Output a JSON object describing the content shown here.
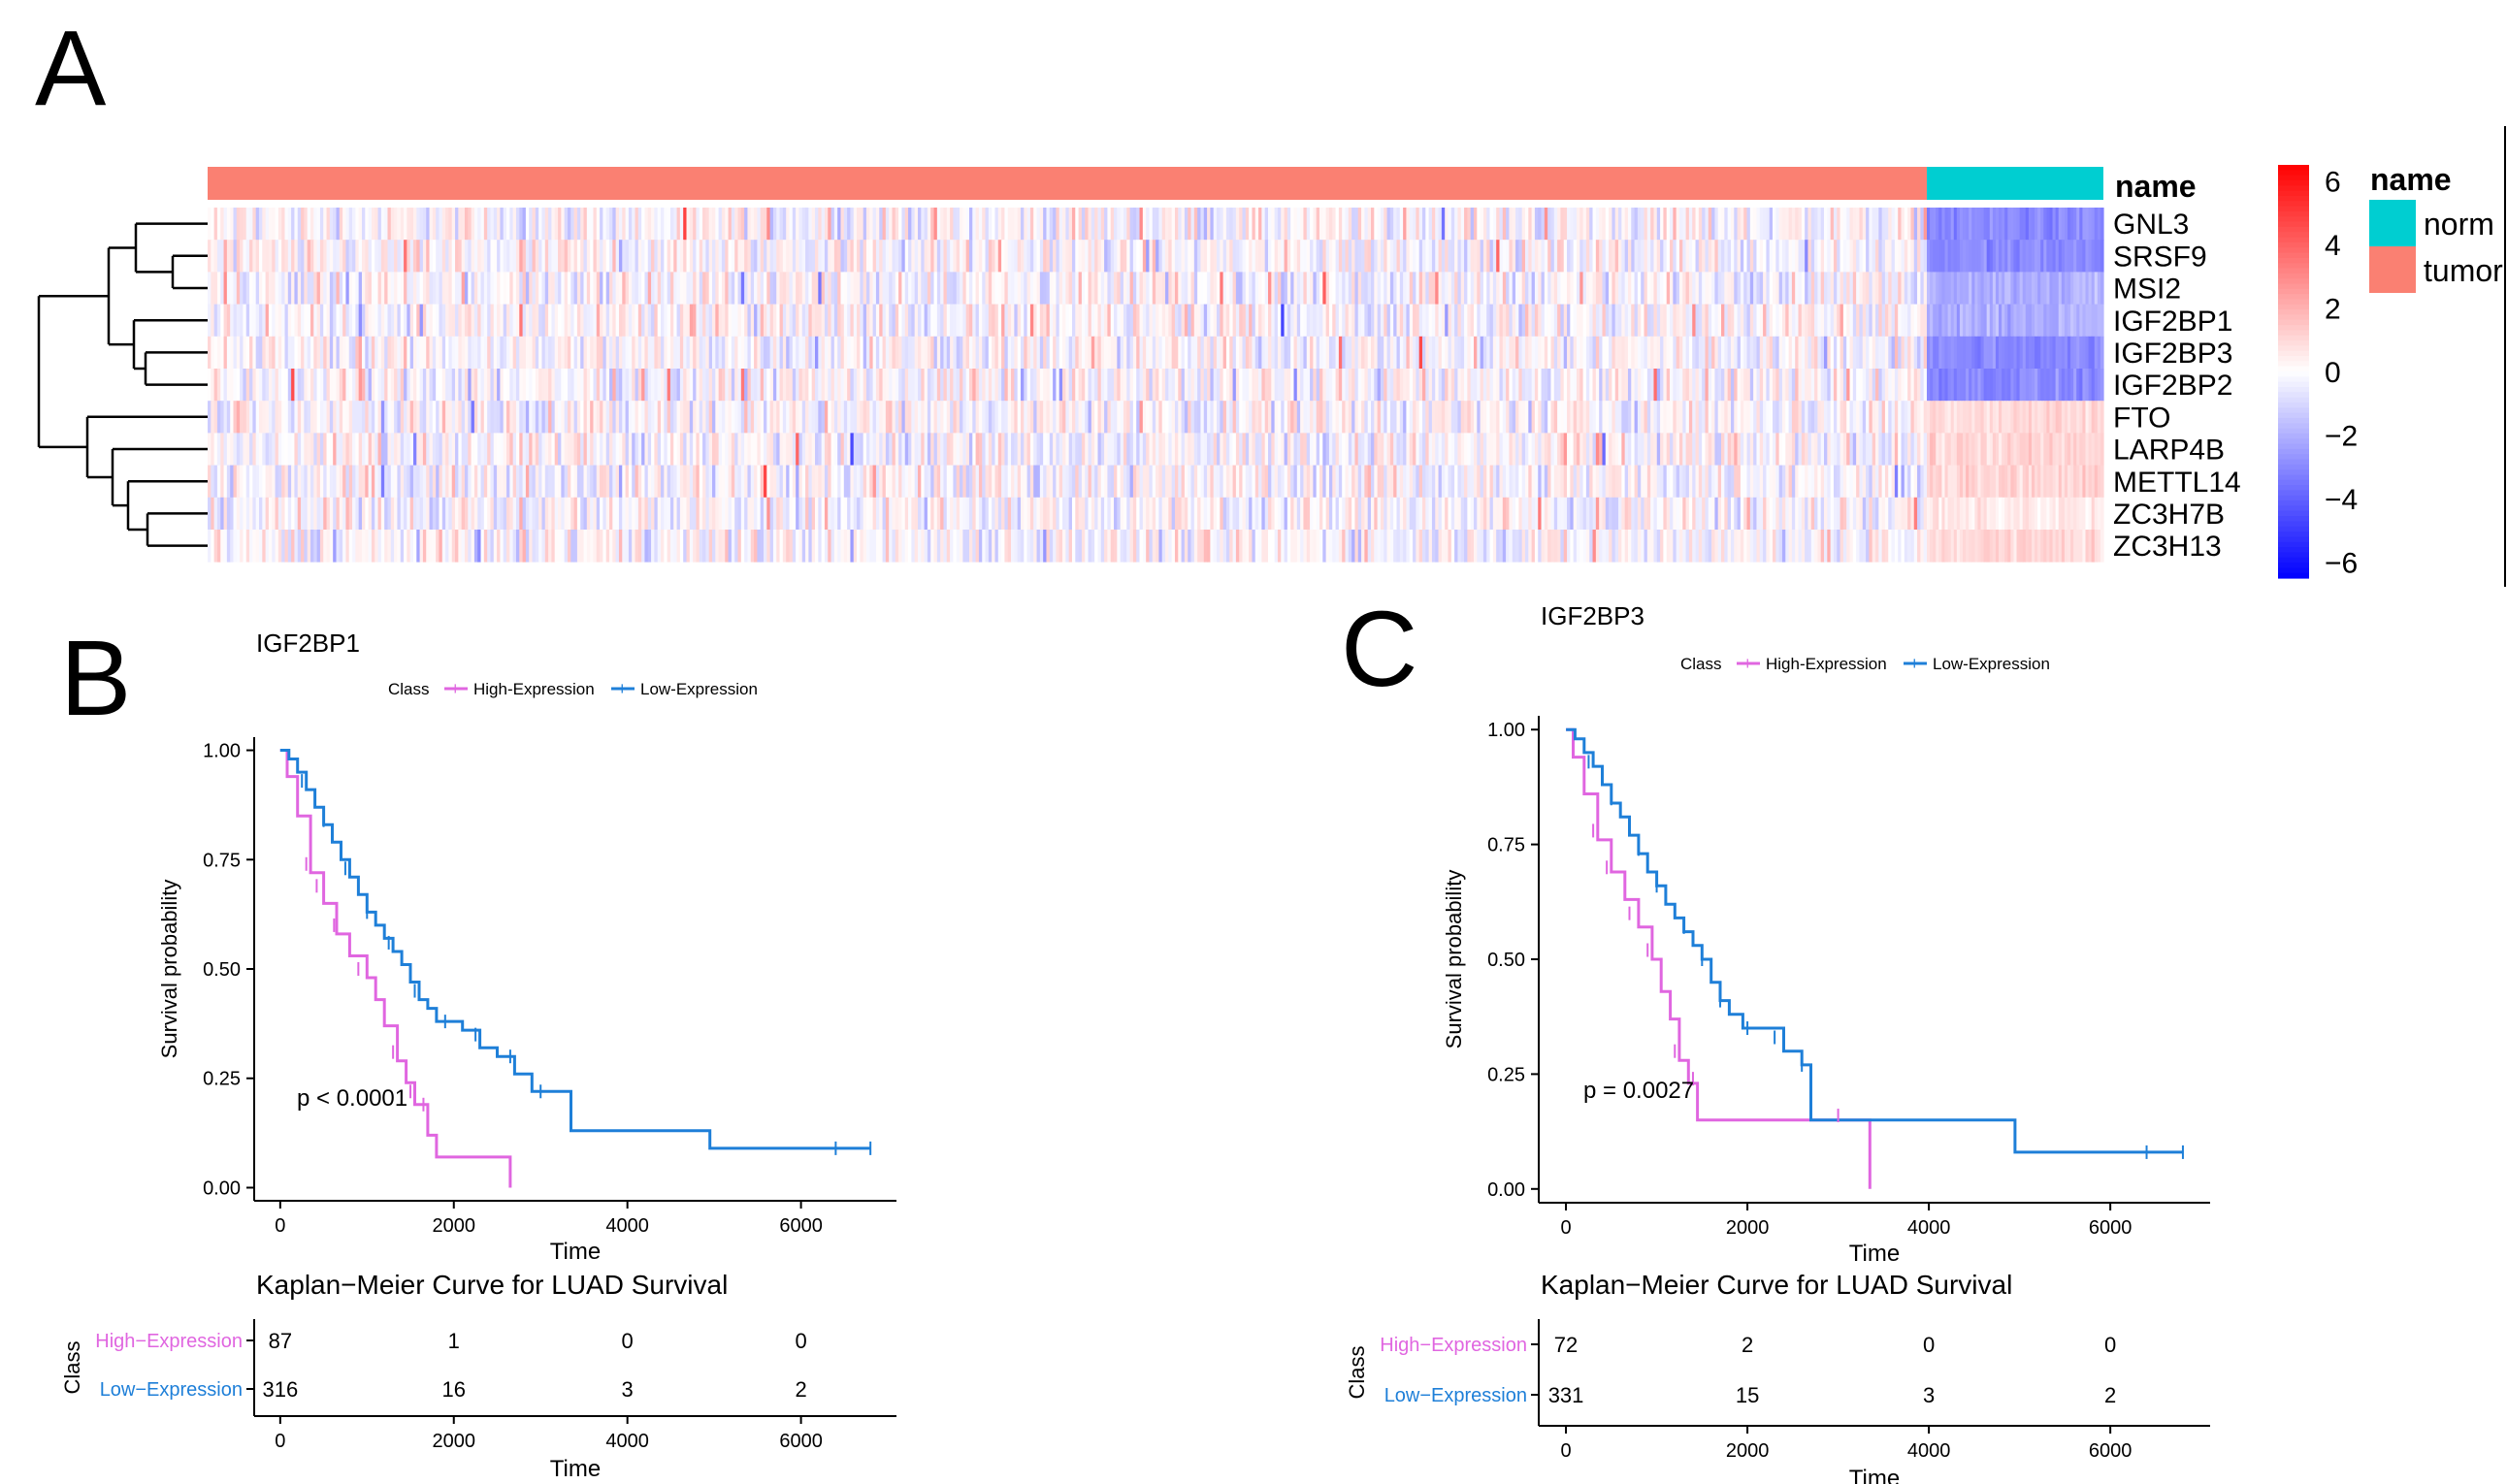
{
  "figure": {
    "panel_labels": [
      "A",
      "B",
      "C"
    ],
    "legend_tumor_label_full": "tumor"
  },
  "chart_data": [
    {
      "type": "heatmap",
      "panel": "A",
      "rows": [
        "GNL3",
        "SRSF9",
        "MSI2",
        "IGF2BP1",
        "IGF2BP3",
        "IGF2BP2",
        "FTO",
        "LARP4B",
        "METTL14",
        "ZC3H7B",
        "ZC3H13"
      ],
      "annotation": {
        "title": "name",
        "groups": [
          {
            "label": "norm",
            "color": "#00CED1",
            "count": 59
          },
          {
            "label": "tumor",
            "color": "#FA8072",
            "count": 535
          }
        ]
      },
      "normal_mean_z": [
        -3,
        -3,
        -2,
        -2,
        -3,
        -3,
        1,
        1,
        1,
        0.5,
        1
      ],
      "color_scale": {
        "ticks": [
          6,
          4,
          2,
          0,
          -2,
          -4,
          -6
        ],
        "range": [
          -6.5,
          6.5
        ],
        "low": "#0000ff",
        "mid": "#ffffff",
        "high": "#ff0000"
      },
      "dendrogram": "rows clustered: (((GNL3,(SRSF9,MSI2)),(IGF2BP1,(IGF2BP3,IGF2BP2))),(FTO,(LARP4B,(METTL14,(ZC3H7B,ZC3H13)))))"
    },
    {
      "type": "line",
      "panel": "B",
      "gene": "IGF2BP1",
      "legend_title": "Class",
      "legend": [
        "High-Expression",
        "Low-Expression"
      ],
      "colors": {
        "high": "#E066E0",
        "low": "#1E7FD8"
      },
      "xlabel": "Time",
      "ylabel": "Survival probability",
      "xlim": [
        -300,
        7100
      ],
      "ylim": [
        -0.03,
        1.03
      ],
      "x_ticks": [
        "0",
        "2000",
        "4000",
        "6000"
      ],
      "y_ticks": [
        "0.00",
        "0.25",
        "0.50",
        "0.75",
        "1.00"
      ],
      "pvalue": "p < 0.0001",
      "series": [
        {
          "name": "High-Expression",
          "x": [
            0,
            80,
            200,
            350,
            500,
            650,
            800,
            1000,
            1100,
            1200,
            1350,
            1450,
            1550,
            1700,
            1800,
            2000,
            2200,
            2650,
            2650
          ],
          "y": [
            1.0,
            0.94,
            0.85,
            0.72,
            0.65,
            0.58,
            0.53,
            0.48,
            0.43,
            0.37,
            0.29,
            0.24,
            0.19,
            0.12,
            0.07,
            0.07,
            0.07,
            0.07,
            0.0
          ]
        },
        {
          "name": "Low-Expression",
          "x": [
            0,
            100,
            200,
            300,
            400,
            500,
            600,
            700,
            800,
            900,
            1000,
            1100,
            1200,
            1300,
            1400,
            1500,
            1600,
            1700,
            1800,
            1950,
            2100,
            2300,
            2500,
            2700,
            2900,
            3100,
            3350,
            3600,
            4000,
            4500,
            4950,
            5500,
            6000,
            6800
          ],
          "y": [
            1.0,
            0.98,
            0.95,
            0.91,
            0.87,
            0.83,
            0.79,
            0.75,
            0.71,
            0.67,
            0.63,
            0.6,
            0.57,
            0.54,
            0.51,
            0.47,
            0.43,
            0.41,
            0.38,
            0.38,
            0.36,
            0.32,
            0.3,
            0.26,
            0.22,
            0.22,
            0.13,
            0.13,
            0.13,
            0.13,
            0.09,
            0.09,
            0.09,
            0.09
          ]
        }
      ],
      "censor_marks": {
        "high": [
          [
            300,
            0.74
          ],
          [
            420,
            0.69
          ],
          [
            620,
            0.6
          ],
          [
            900,
            0.5
          ],
          [
            1300,
            0.31
          ],
          [
            1500,
            0.22
          ],
          [
            1650,
            0.19
          ]
        ],
        "low": [
          [
            250,
            0.93
          ],
          [
            500,
            0.84
          ],
          [
            750,
            0.73
          ],
          [
            1000,
            0.63
          ],
          [
            1250,
            0.56
          ],
          [
            1550,
            0.45
          ],
          [
            1900,
            0.38
          ],
          [
            2250,
            0.35
          ],
          [
            2650,
            0.3
          ],
          [
            3000,
            0.22
          ],
          [
            6400,
            0.09
          ],
          [
            6800,
            0.09
          ]
        ]
      },
      "caption": "Kaplan−Meier Curve for LUAD Survival",
      "risk_table": {
        "ylabel": "Class",
        "xlabel": "Time",
        "row_labels": [
          "High-Expression",
          "Low-Expression"
        ],
        "rows": [
          [
            "87",
            "1",
            "0",
            "0"
          ],
          [
            "316",
            "16",
            "3",
            "2"
          ]
        ]
      }
    },
    {
      "type": "line",
      "panel": "C",
      "gene": "IGF2BP3",
      "legend_title": "Class",
      "legend": [
        "High-Expression",
        "Low-Expression"
      ],
      "colors": {
        "high": "#E066E0",
        "low": "#1E7FD8"
      },
      "xlabel": "Time",
      "ylabel": "Survival probability",
      "xlim": [
        -300,
        7100
      ],
      "ylim": [
        -0.03,
        1.03
      ],
      "x_ticks": [
        "0",
        "2000",
        "4000",
        "6000"
      ],
      "y_ticks": [
        "0.00",
        "0.25",
        "0.50",
        "0.75",
        "1.00"
      ],
      "pvalue": "p = 0.0027",
      "series": [
        {
          "name": "High-Expression",
          "x": [
            0,
            80,
            200,
            350,
            500,
            650,
            800,
            950,
            1050,
            1150,
            1250,
            1350,
            1450,
            2000,
            2500,
            3000,
            3350,
            3350
          ],
          "y": [
            1.0,
            0.94,
            0.86,
            0.76,
            0.69,
            0.63,
            0.57,
            0.5,
            0.43,
            0.37,
            0.28,
            0.23,
            0.15,
            0.15,
            0.15,
            0.15,
            0.15,
            0.0
          ]
        },
        {
          "name": "Low-Expression",
          "x": [
            0,
            100,
            200,
            300,
            400,
            500,
            600,
            700,
            800,
            900,
            1000,
            1100,
            1200,
            1300,
            1400,
            1500,
            1600,
            1700,
            1800,
            1950,
            2200,
            2400,
            2600,
            2700,
            3000,
            3400,
            4000,
            4500,
            4950,
            5500,
            6000,
            6800
          ],
          "y": [
            1.0,
            0.98,
            0.95,
            0.92,
            0.88,
            0.84,
            0.81,
            0.77,
            0.73,
            0.69,
            0.66,
            0.62,
            0.59,
            0.56,
            0.53,
            0.5,
            0.45,
            0.41,
            0.38,
            0.35,
            0.35,
            0.3,
            0.27,
            0.15,
            0.15,
            0.15,
            0.15,
            0.15,
            0.08,
            0.08,
            0.08,
            0.08
          ]
        }
      ],
      "censor_marks": {
        "high": [
          [
            300,
            0.78
          ],
          [
            450,
            0.7
          ],
          [
            700,
            0.6
          ],
          [
            900,
            0.52
          ],
          [
            1200,
            0.3
          ],
          [
            1400,
            0.24
          ],
          [
            3000,
            0.16
          ]
        ],
        "low": [
          [
            250,
            0.93
          ],
          [
            500,
            0.85
          ],
          [
            800,
            0.74
          ],
          [
            1000,
            0.66
          ],
          [
            1300,
            0.57
          ],
          [
            1500,
            0.5
          ],
          [
            1700,
            0.41
          ],
          [
            2000,
            0.35
          ],
          [
            2300,
            0.33
          ],
          [
            2600,
            0.27
          ],
          [
            6400,
            0.08
          ],
          [
            6800,
            0.08
          ]
        ]
      },
      "caption": "Kaplan−Meier Curve for LUAD Survival",
      "risk_table": {
        "ylabel": "Class",
        "xlabel": "Time",
        "row_labels": [
          "High-Expression",
          "Low-Expression"
        ],
        "rows": [
          [
            "72",
            "2",
            "0",
            "0"
          ],
          [
            "331",
            "15",
            "3",
            "2"
          ]
        ]
      }
    }
  ]
}
